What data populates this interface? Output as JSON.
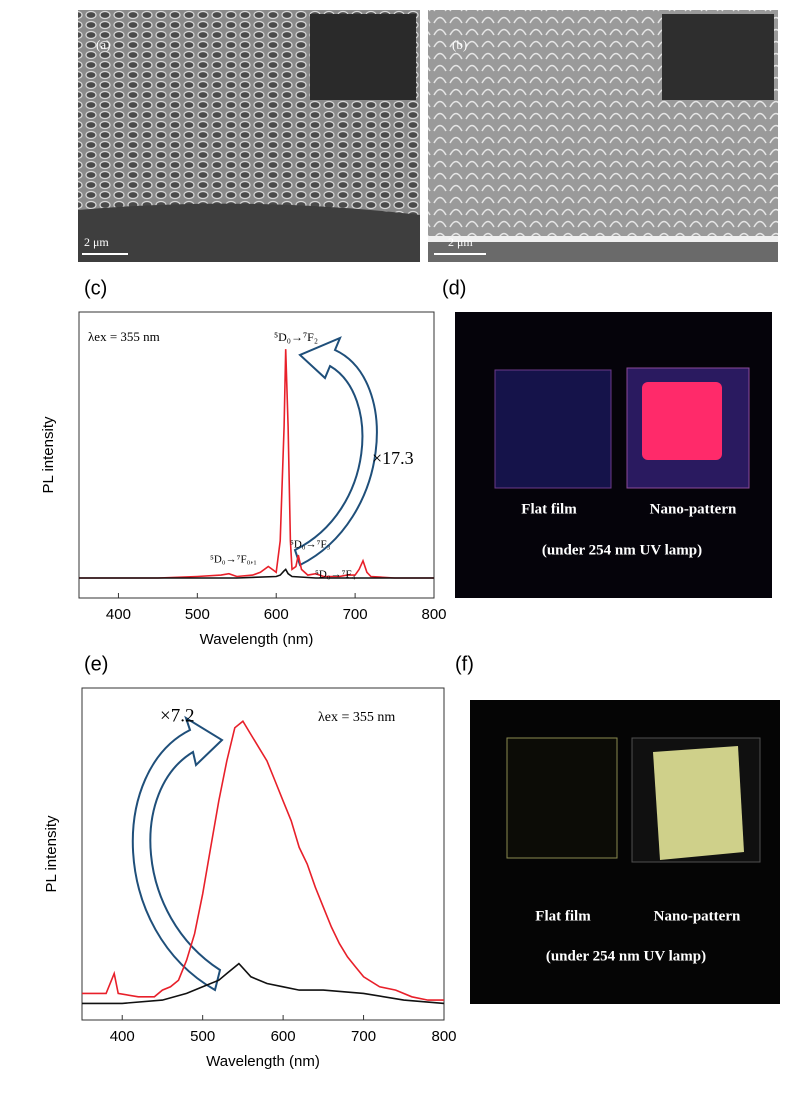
{
  "panels": {
    "a": {
      "label": "(a)",
      "scale": "2 μm"
    },
    "b": {
      "label": "(b)",
      "scale": "2 μm"
    },
    "c": {
      "label": "(c)"
    },
    "d": {
      "label": "(d)",
      "left": "Flat film",
      "right": "Nano-pattern",
      "caption": "(under 254 nm UV lamp)"
    },
    "e": {
      "label": "(e)"
    },
    "f": {
      "label": "(f)",
      "left": "Flat film",
      "right": "Nano-pattern",
      "caption": "(under 254 nm UV lamp)"
    }
  },
  "chart_data": [
    {
      "type": "line",
      "x_label": "Wavelength (nm)",
      "y_label": "PL intensity",
      "xlim": [
        350,
        800
      ],
      "xticks": [
        400,
        500,
        600,
        700,
        800
      ],
      "ylim": [
        0,
        100
      ],
      "annotations": [
        "λex = 355 nm",
        "⁵D₀→⁷F₂",
        "×17.3",
        "⁵D₀→⁷F₀,₁",
        "⁵D₀→⁷F₃",
        "⁵D₀→⁷F₄"
      ],
      "series": [
        {
          "color": "#e8202a",
          "x": [
            350,
            400,
            450,
            500,
            530,
            540,
            550,
            570,
            580,
            590,
            595,
            600,
            605,
            610,
            612,
            615,
            618,
            620,
            625,
            628,
            632,
            640,
            650,
            660,
            680,
            690,
            700,
            705,
            710,
            715,
            720,
            750,
            800
          ],
          "values": [
            7,
            7,
            7,
            7.5,
            8,
            8.5,
            7.5,
            8,
            9,
            11,
            10,
            9,
            20,
            60,
            87,
            60,
            20,
            10,
            11,
            15,
            10,
            8,
            8.5,
            7.5,
            7.5,
            8,
            8,
            10,
            13,
            9,
            7.5,
            7,
            7
          ]
        },
        {
          "color": "#111111",
          "x": [
            350,
            400,
            450,
            500,
            550,
            600,
            605,
            610,
            612,
            615,
            620,
            650,
            700,
            750,
            800
          ],
          "values": [
            7,
            7,
            7,
            7,
            7,
            7.5,
            8,
            9.5,
            10,
            8.5,
            7.5,
            7,
            7,
            7,
            7
          ]
        }
      ]
    },
    {
      "type": "line",
      "x_label": "Wavelength (nm)",
      "y_label": "PL intensity",
      "xlim": [
        350,
        800
      ],
      "xticks": [
        400,
        500,
        600,
        700,
        800
      ],
      "ylim": [
        0,
        100
      ],
      "annotations": [
        "×7.2",
        "λex = 355 nm"
      ],
      "series": [
        {
          "color": "#e8202a",
          "x": [
            350,
            380,
            390,
            395,
            420,
            440,
            450,
            460,
            470,
            480,
            490,
            500,
            510,
            520,
            530,
            540,
            550,
            560,
            570,
            580,
            590,
            600,
            610,
            620,
            630,
            640,
            650,
            660,
            670,
            680,
            690,
            700,
            720,
            740,
            760,
            780,
            800
          ],
          "values": [
            8,
            8,
            14,
            8,
            7,
            7,
            9,
            10,
            12,
            18,
            26,
            38,
            52,
            66,
            78,
            88,
            90,
            86,
            82,
            78,
            72,
            66,
            60,
            52,
            47,
            40,
            34,
            28,
            23,
            19,
            16,
            13,
            10,
            9,
            7,
            6,
            6
          ]
        },
        {
          "color": "#111111",
          "x": [
            350,
            400,
            450,
            480,
            500,
            520,
            530,
            545,
            560,
            580,
            600,
            620,
            650,
            700,
            750,
            800
          ],
          "values": [
            5,
            5,
            6,
            8,
            10,
            12,
            14,
            17,
            13,
            11,
            10,
            9,
            9,
            8,
            6,
            5
          ]
        }
      ]
    }
  ]
}
